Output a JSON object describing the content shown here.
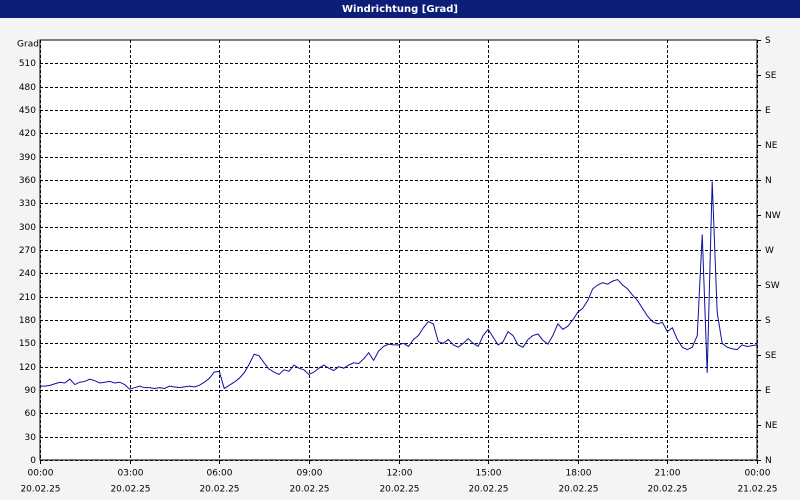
{
  "chart_data": {
    "type": "line",
    "title": "Windrichtung [Grad]",
    "y_label": "Grad",
    "x": [
      0,
      10,
      20,
      30,
      40,
      50,
      60,
      70,
      80,
      90,
      100,
      110,
      120,
      130,
      140,
      150,
      160,
      170,
      180,
      190,
      200,
      210,
      220,
      230,
      240,
      250,
      260,
      270,
      280,
      290,
      300,
      310,
      320,
      330,
      340,
      350,
      360,
      370,
      380,
      390,
      400,
      410,
      420,
      430,
      440,
      450,
      460,
      470,
      480,
      490,
      500,
      510,
      520,
      530,
      540,
      550,
      560,
      570,
      580,
      590,
      600,
      610,
      620,
      630,
      640,
      650,
      660,
      670,
      680,
      690,
      700,
      710,
      720,
      730,
      740,
      750,
      760,
      770,
      780,
      790,
      800,
      810,
      820,
      830,
      840,
      850,
      860,
      870,
      880,
      890,
      900,
      910,
      920,
      930,
      940,
      950,
      960,
      970,
      980,
      990,
      1000,
      1010,
      1020,
      1030,
      1040,
      1050,
      1060,
      1070,
      1080,
      1090,
      1100,
      1110,
      1120,
      1130,
      1140,
      1150,
      1160,
      1170,
      1180,
      1190,
      1200,
      1210,
      1220,
      1230,
      1240,
      1250,
      1260,
      1270,
      1280,
      1290,
      1300,
      1310,
      1320,
      1330,
      1340,
      1350,
      1360,
      1370,
      1380,
      1390,
      1400,
      1410,
      1420,
      1430,
      1440
    ],
    "series": [
      {
        "color": "#1010a0",
        "values": [
          95,
          95,
          96,
          98,
          100,
          99,
          104,
          97,
          100,
          101,
          104,
          102,
          99,
          100,
          101,
          99,
          100,
          97,
          91,
          93,
          95,
          93,
          93,
          92,
          93,
          92,
          95,
          94,
          93,
          94,
          95,
          94,
          96,
          100,
          105,
          113,
          114,
          92,
          96,
          100,
          105,
          112,
          123,
          136,
          134,
          125,
          117,
          113,
          110,
          116,
          114,
          122,
          118,
          116,
          110,
          113,
          118,
          122,
          118,
          115,
          120,
          118,
          122,
          125,
          124,
          130,
          138,
          128,
          140,
          146,
          149,
          148,
          148,
          150,
          146,
          155,
          160,
          170,
          178,
          175,
          152,
          150,
          155,
          148,
          145,
          150,
          156,
          150,
          146,
          160,
          168,
          158,
          148,
          152,
          165,
          160,
          148,
          145,
          155,
          160,
          162,
          154,
          149,
          160,
          175,
          168,
          172,
          180,
          190,
          195,
          205,
          220,
          225,
          228,
          226,
          230,
          232,
          225,
          220,
          212,
          205,
          195,
          185,
          178,
          175,
          177,
          165,
          170,
          155,
          145,
          142,
          145,
          160,
          290,
          112,
          358,
          190,
          150,
          145,
          143,
          142,
          148,
          146,
          147,
          148
        ]
      }
    ],
    "xlim": [
      0,
      1440
    ],
    "xticks": [
      {
        "value": 0,
        "label": "00:00",
        "date": "20.02.25"
      },
      {
        "value": 180,
        "label": "03:00",
        "date": "20.02.25"
      },
      {
        "value": 360,
        "label": "06:00",
        "date": "20.02.25"
      },
      {
        "value": 540,
        "label": "09:00",
        "date": "20.02.25"
      },
      {
        "value": 720,
        "label": "12:00",
        "date": "20.02.25"
      },
      {
        "value": 900,
        "label": "15:00",
        "date": "20.02.25"
      },
      {
        "value": 1080,
        "label": "18:00",
        "date": "20.02.25"
      },
      {
        "value": 1260,
        "label": "21:00",
        "date": "20.02.25"
      },
      {
        "value": 1440,
        "label": "00:00",
        "date": "21.02.25"
      }
    ],
    "ylim": [
      0,
      540
    ],
    "yticks": [
      0,
      30,
      60,
      90,
      120,
      150,
      180,
      210,
      240,
      270,
      300,
      330,
      360,
      390,
      420,
      450,
      480,
      510
    ],
    "y2lim": [
      0,
      540
    ],
    "y2ticks": [
      {
        "value": 0,
        "label": "N"
      },
      {
        "value": 45,
        "label": "NE"
      },
      {
        "value": 90,
        "label": "E"
      },
      {
        "value": 135,
        "label": "SE"
      },
      {
        "value": 180,
        "label": "S"
      },
      {
        "value": 225,
        "label": "SW"
      },
      {
        "value": 270,
        "label": "W"
      },
      {
        "value": 315,
        "label": "NW"
      },
      {
        "value": 360,
        "label": "N"
      },
      {
        "value": 405,
        "label": "NE"
      },
      {
        "value": 450,
        "label": "E"
      },
      {
        "value": 495,
        "label": "SE"
      },
      {
        "value": 540,
        "label": "S"
      }
    ],
    "grid": true
  }
}
